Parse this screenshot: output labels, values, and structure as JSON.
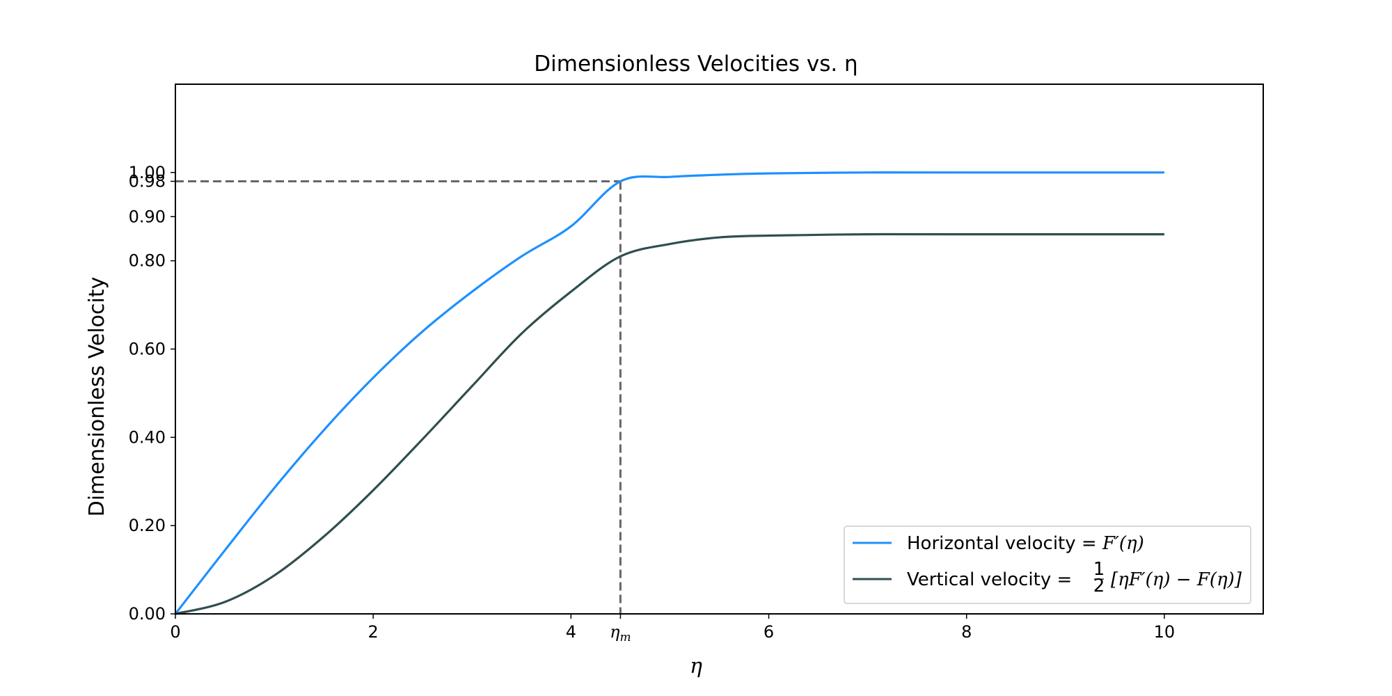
{
  "chart_data": {
    "type": "line",
    "title": "Dimensionless Velocities vs. η",
    "xlabel": "η",
    "ylabel": "Dimensionless Velocity",
    "xlim": [
      0,
      11
    ],
    "ylim": [
      0,
      1.2
    ],
    "x_ticks": [
      {
        "value": 0,
        "label": "0"
      },
      {
        "value": 2,
        "label": "2"
      },
      {
        "value": 4,
        "label": "4"
      },
      {
        "value": 4.5,
        "label": "ηm"
      },
      {
        "value": 6,
        "label": "6"
      },
      {
        "value": 8,
        "label": "8"
      },
      {
        "value": 10,
        "label": "10"
      }
    ],
    "y_ticks": [
      {
        "value": 0.0,
        "label": "0.00"
      },
      {
        "value": 0.2,
        "label": "0.20"
      },
      {
        "value": 0.4,
        "label": "0.40"
      },
      {
        "value": 0.6,
        "label": "0.60"
      },
      {
        "value": 0.8,
        "label": "0.80"
      },
      {
        "value": 0.9,
        "label": "0.90"
      },
      {
        "value": 0.98,
        "label": "0.98"
      },
      {
        "value": 1.0,
        "label": "1.00"
      }
    ],
    "annotations": {
      "eta_m": 4.5,
      "velocity_at_eta_m": 0.98,
      "line_color": "#666666",
      "line_style": "dashed"
    },
    "legend_position": "bottom-right",
    "grid": false,
    "series": [
      {
        "name": "Horizontal velocity = F′(η)",
        "color": "#1e90ff",
        "x": [
          0,
          0.5,
          1,
          1.5,
          2,
          2.5,
          3,
          3.5,
          4,
          4.5,
          5,
          5.5,
          6,
          7,
          8,
          9,
          10
        ],
        "values": [
          0,
          0.144,
          0.285,
          0.416,
          0.535,
          0.64,
          0.73,
          0.81,
          0.878,
          0.98,
          0.99,
          0.995,
          0.998,
          1.0,
          1.0,
          1.0,
          1.0
        ]
      },
      {
        "name": "Vertical velocity = ½ [ηF′(η) − F(η)]",
        "color": "#2f4f4f",
        "x": [
          0,
          0.5,
          1,
          1.5,
          2,
          2.5,
          3,
          3.5,
          4,
          4.5,
          5,
          5.5,
          6,
          7,
          8,
          9,
          10
        ],
        "values": [
          0,
          0.027,
          0.087,
          0.175,
          0.28,
          0.396,
          0.516,
          0.635,
          0.73,
          0.81,
          0.838,
          0.853,
          0.857,
          0.86,
          0.86,
          0.86,
          0.86
        ]
      }
    ]
  },
  "legend": {
    "horizontal_prefix": "Horizontal velocity = ",
    "horizontal_math": "F′(η)",
    "vertical_prefix": "Vertical velocity = ",
    "vertical_frac_num": "1",
    "vertical_frac_den": "2",
    "vertical_math": "[ηF′(η) − F(η)]"
  }
}
